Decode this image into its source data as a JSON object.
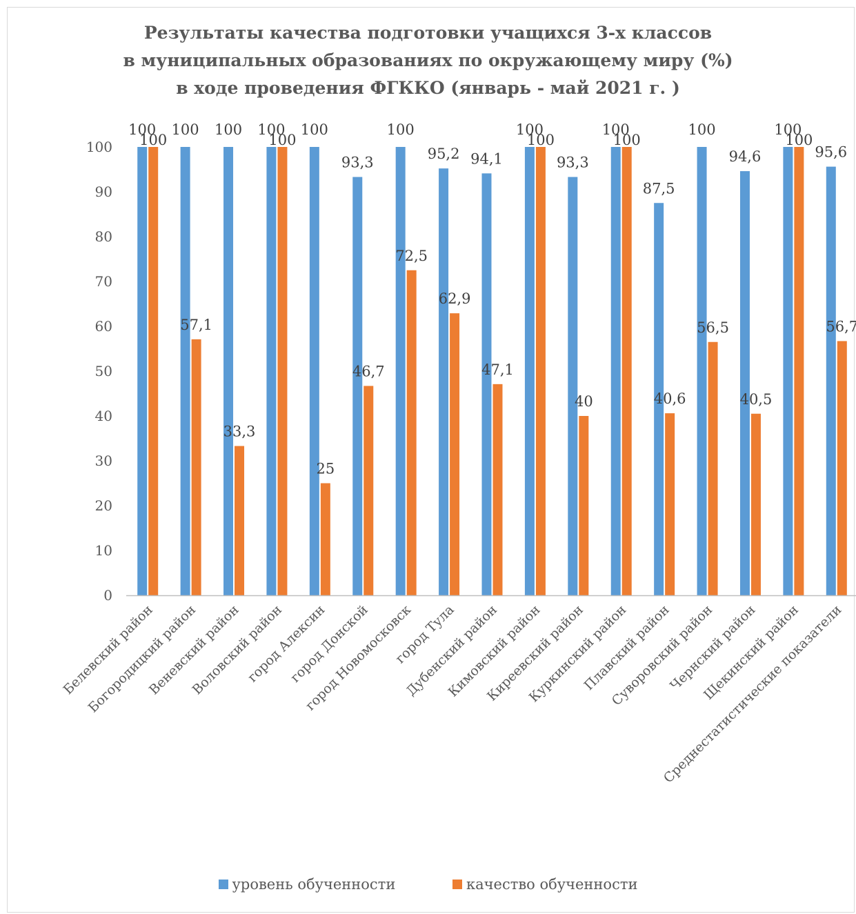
{
  "colors": {
    "series1": "#5b9bd5",
    "series2": "#ed7d31",
    "axis": "#bfbfbf",
    "text": "#595959"
  },
  "chart_data": {
    "type": "bar",
    "title_lines": [
      "Результаты качества подготовки учащихся 3-х классов",
      "в муниципальных образованиях по окружающему миру (%)",
      "в ходе проведения ФГККО (январь - май 2021 г. )"
    ],
    "categories": [
      "Белевский район",
      "Богородицкий район",
      "Веневский район",
      "Воловский район",
      "город Алексин",
      "город Донской",
      "город Новомосковск",
      "город Тула",
      "Дубенский район",
      "Кимовский район",
      "Киреевский район",
      "Куркинский район",
      "Плавский район",
      "Суворовский район",
      "Чернский район",
      "Щекинский район",
      "Среднестатистические показатели"
    ],
    "series": [
      {
        "name": "уровень обученности",
        "values": [
          100,
          100,
          100,
          100,
          100,
          93.3,
          100,
          95.2,
          94.1,
          100,
          93.3,
          100,
          87.5,
          100,
          94.6,
          100,
          95.6
        ],
        "labels": [
          "100",
          "100",
          "100",
          "100",
          "100",
          "93,3",
          "100",
          "95,2",
          "94,1",
          "100",
          "93,3",
          "100",
          "87,5",
          "100",
          "94,6",
          "100",
          "95,6"
        ]
      },
      {
        "name": "качество обученности",
        "values": [
          100,
          57.1,
          33.3,
          100,
          25,
          46.7,
          72.5,
          62.9,
          47.1,
          100,
          40,
          100,
          40.6,
          56.5,
          40.5,
          100,
          56.7
        ],
        "labels": [
          "100",
          "57,1",
          "33,3",
          "100",
          "25",
          "46,7",
          "72,5",
          "62,9",
          "47,1",
          "100",
          "40",
          "100",
          "40,6",
          "56,5",
          "40,5",
          "100",
          "56,7"
        ]
      }
    ],
    "yticks": [
      "0",
      "10",
      "20",
      "30",
      "40",
      "50",
      "60",
      "70",
      "80",
      "90",
      "100"
    ],
    "ylim": [
      0,
      100
    ],
    "grid": false,
    "legend_position": "bottom"
  }
}
